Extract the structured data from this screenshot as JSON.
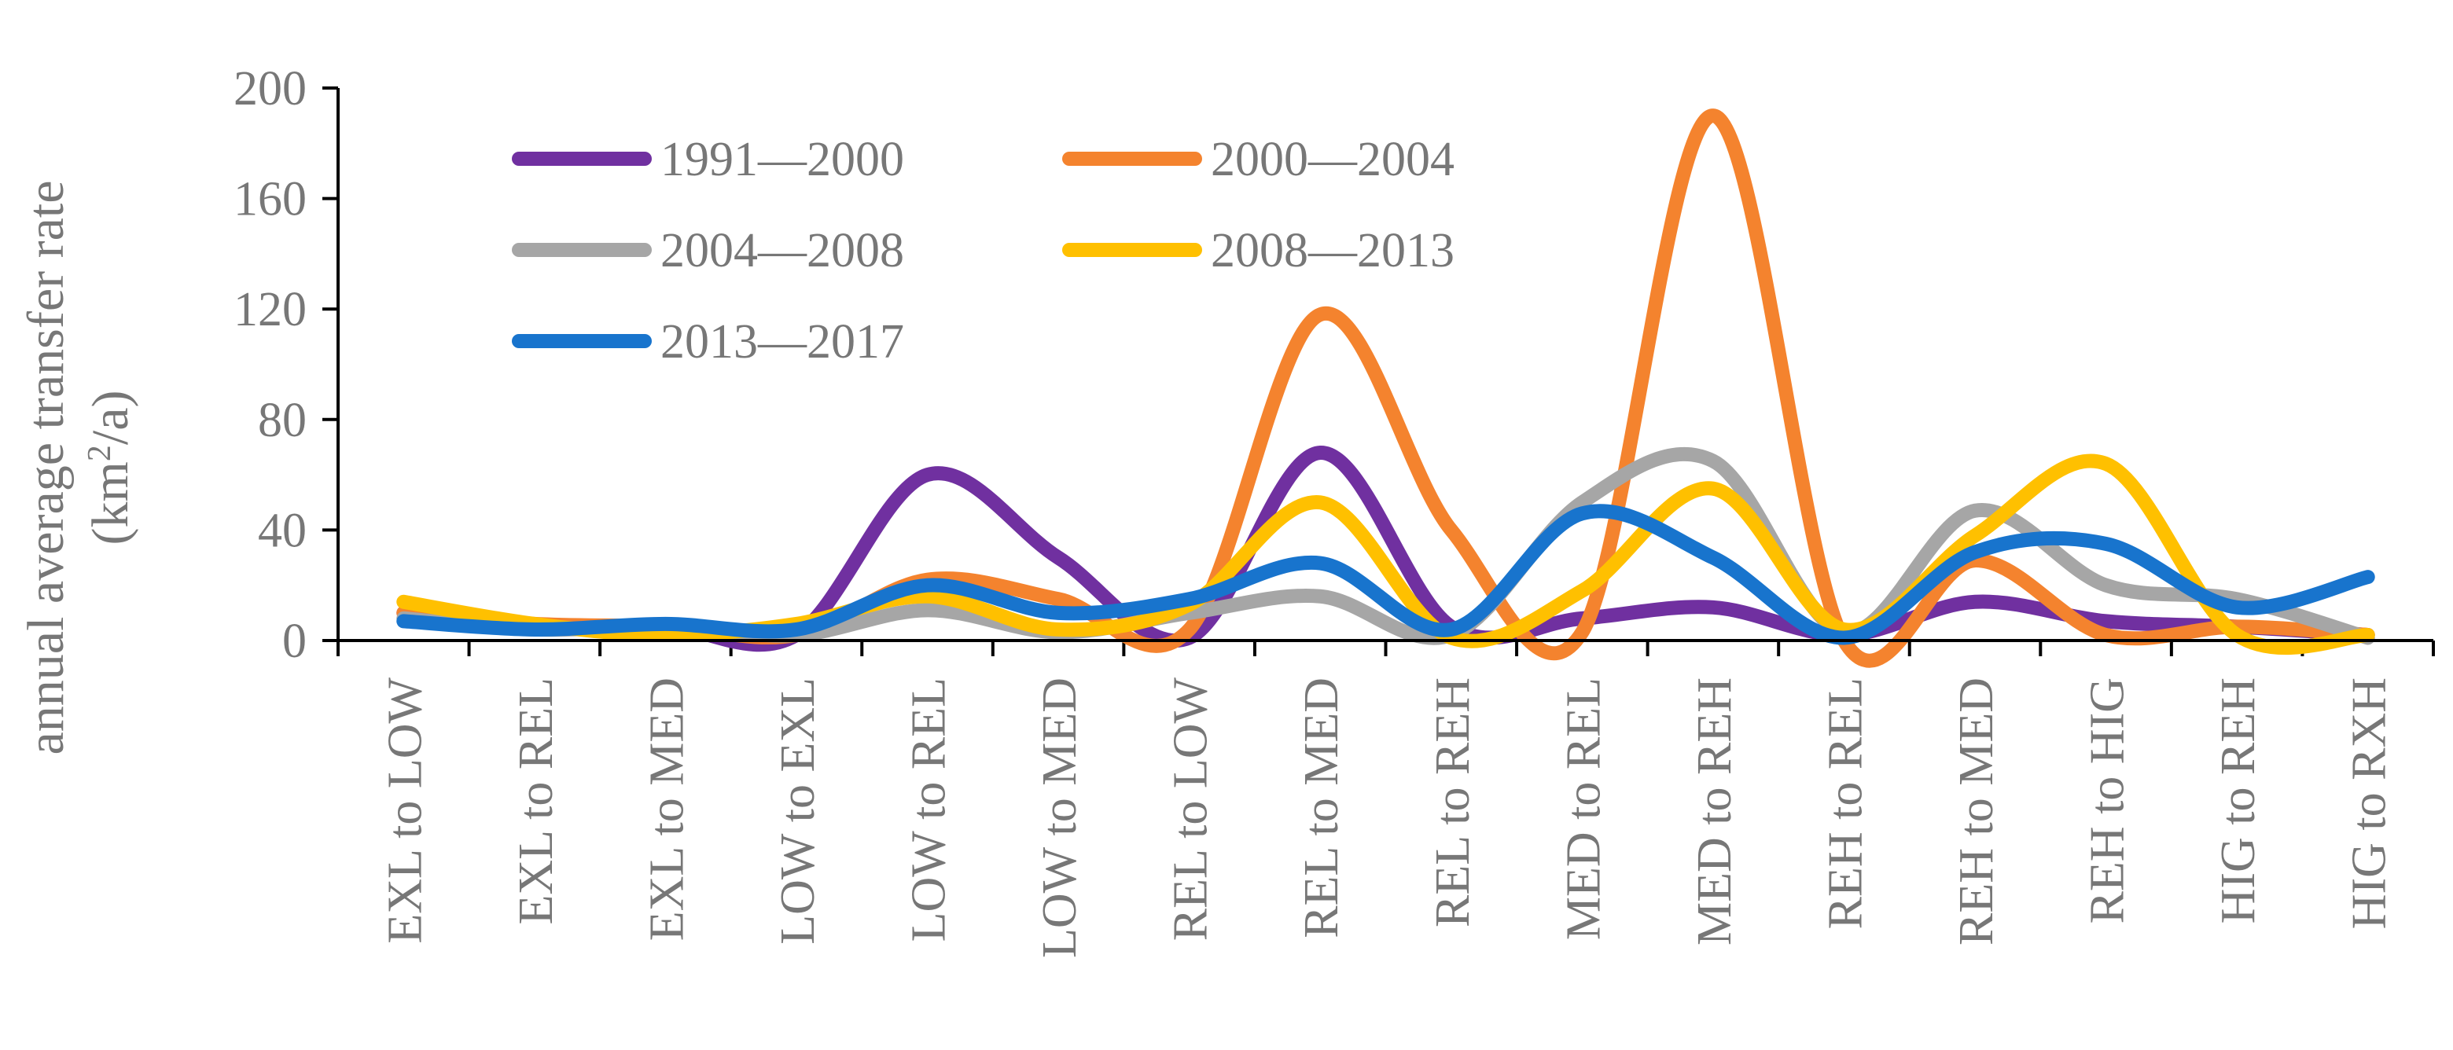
{
  "chart_data": {
    "type": "line",
    "title": "",
    "xlabel": "",
    "ylabel_line1": "annual average transfer rate",
    "ylabel_line2_base": "(km",
    "ylabel_line2_sup": "2",
    "ylabel_line2_tail": "/a)",
    "ylim": [
      0,
      200
    ],
    "yticks": [
      "0",
      "40",
      "80",
      "120",
      "160",
      "200"
    ],
    "yticks_values": [
      0,
      40,
      80,
      120,
      160,
      200
    ],
    "grid": false,
    "legend_position": "top-left",
    "smooth": true,
    "categories": [
      "EXL to LOW",
      "EXL to REL",
      "EXL to MED",
      "LOW to EXL",
      "LOW to REL",
      "LOW to MED",
      "REL to LOW",
      "REL to MED",
      "REL to REH",
      "MED to REL",
      "MED to REH",
      "REH to REL",
      "REH to MED",
      "REH to HIG",
      "HIG to REH",
      "HIG to RXH"
    ],
    "series": [
      {
        "name": "1991—2000",
        "color": "#7030A0",
        "values": [
          10,
          5,
          5,
          2,
          60,
          30,
          1,
          68,
          5,
          8,
          12,
          2,
          14,
          7,
          5,
          2
        ]
      },
      {
        "name": "2000—2004",
        "color": "#F4832E",
        "values": [
          10,
          6,
          5,
          2,
          22,
          15,
          4,
          118,
          40,
          3,
          190,
          0,
          29,
          2,
          5,
          2
        ]
      },
      {
        "name": "2004—2008",
        "color": "#A6A6A6",
        "values": [
          8,
          4,
          5,
          2,
          11,
          3,
          10,
          16,
          2,
          50,
          65,
          3,
          47,
          20,
          15,
          1
        ]
      },
      {
        "name": "2008—2013",
        "color": "#FFC000",
        "values": [
          14,
          6,
          2,
          6,
          16,
          4,
          13,
          50,
          1,
          18,
          55,
          4,
          38,
          64,
          2,
          2
        ]
      },
      {
        "name": "2013—2017",
        "color": "#1874CD",
        "values": [
          7,
          4,
          6,
          4,
          20,
          10,
          15,
          28,
          4,
          46,
          30,
          1,
          32,
          35,
          12,
          23
        ]
      }
    ]
  }
}
